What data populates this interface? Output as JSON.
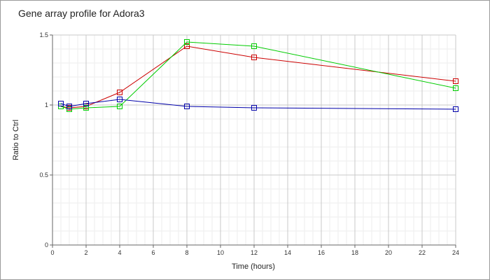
{
  "chart_data": {
    "type": "line",
    "title": "Gene array profile for Adora3",
    "xlabel": "Time (hours)",
    "ylabel": "Ratio to Ctrl",
    "xlim": [
      0,
      24
    ],
    "ylim": [
      0,
      1.5
    ],
    "x_ticks": [
      0,
      2,
      4,
      6,
      8,
      10,
      12,
      14,
      16,
      18,
      20,
      22,
      24
    ],
    "y_ticks": [
      0,
      0.5,
      1,
      1.5
    ],
    "x_tick_labels": [
      "0",
      "2",
      "4",
      "6",
      "8",
      "10",
      "12",
      "14",
      "16",
      "18",
      "20",
      "22",
      "24"
    ],
    "y_tick_labels": [
      "0",
      "0.5",
      "1",
      "1.5"
    ],
    "grid": true,
    "minor_grid": true,
    "legend": "none",
    "series": [
      {
        "color": "#cc0000",
        "marker": "square",
        "x": [
          0.5,
          1,
          2,
          4,
          8,
          12,
          24
        ],
        "y": [
          0.99,
          0.98,
          0.99,
          1.09,
          1.42,
          1.34,
          1.17
        ]
      },
      {
        "color": "#00cc00",
        "marker": "square",
        "x": [
          0.5,
          1,
          2,
          4,
          8,
          12,
          24
        ],
        "y": [
          0.99,
          0.97,
          0.98,
          0.99,
          1.45,
          1.42,
          1.12
        ]
      },
      {
        "color": "#0000aa",
        "marker": "square",
        "x": [
          0.5,
          1,
          2,
          4,
          8,
          12,
          24
        ],
        "y": [
          1.01,
          0.99,
          1.01,
          1.04,
          0.99,
          0.98,
          0.97
        ]
      }
    ]
  }
}
